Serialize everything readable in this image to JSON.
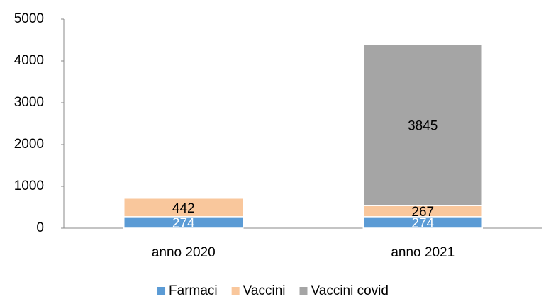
{
  "chart_data": {
    "type": "stacked_bar",
    "categories": [
      "anno 2020",
      "anno 2021"
    ],
    "series": [
      {
        "name": "Farmaci",
        "color": "#5b9bd5",
        "label_color": "#ffffff",
        "values": [
          274,
          274
        ]
      },
      {
        "name": "Vaccini",
        "color": "#f9c79c",
        "label_color": "#000000",
        "values": [
          442,
          267
        ]
      },
      {
        "name": "Vaccini covid",
        "color": "#a5a5a5",
        "label_color": "#000000",
        "values": [
          null,
          3845
        ]
      }
    ],
    "ylim": [
      0,
      5000
    ],
    "yticks": [
      0,
      1000,
      2000,
      3000,
      4000,
      5000
    ],
    "grid": false,
    "legend": "bottom"
  }
}
